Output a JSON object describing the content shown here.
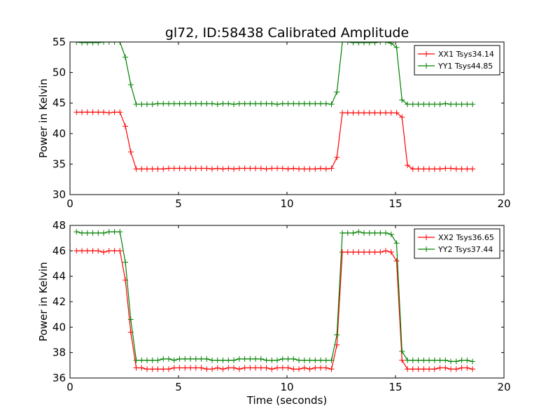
{
  "page": {
    "title": "gl72, ID:58438 Calibrated Amplitude"
  },
  "colors": {
    "xx": "#ff0000",
    "yy": "#008000",
    "axis": "#000000",
    "background": "#ffffff"
  },
  "chart_data": [
    {
      "type": "line",
      "title": "gl72, ID:58438 Calibrated Amplitude",
      "xlabel": "",
      "ylabel": "Power in Kelvin",
      "xlim": [
        0,
        20
      ],
      "ylim": [
        30,
        55
      ],
      "xticks": [
        0,
        5,
        10,
        15,
        20
      ],
      "yticks": [
        30,
        35,
        40,
        45,
        50,
        55
      ],
      "grid": false,
      "legend_position": "top-right",
      "marker": "plus",
      "x": [
        0.3,
        0.55,
        0.8,
        1.05,
        1.3,
        1.55,
        1.8,
        2.05,
        2.3,
        2.55,
        2.8,
        3.05,
        3.3,
        3.55,
        3.8,
        4.05,
        4.3,
        4.55,
        4.8,
        5.05,
        5.3,
        5.55,
        5.8,
        6.05,
        6.3,
        6.55,
        6.8,
        7.05,
        7.3,
        7.55,
        7.8,
        8.05,
        8.3,
        8.55,
        8.8,
        9.05,
        9.3,
        9.55,
        9.8,
        10.05,
        10.3,
        10.55,
        10.8,
        11.05,
        11.3,
        11.55,
        11.8,
        12.05,
        12.3,
        12.55,
        12.8,
        13.05,
        13.3,
        13.55,
        13.8,
        14.05,
        14.3,
        14.55,
        14.8,
        15.05,
        15.3,
        15.55,
        15.8,
        16.05,
        16.3,
        16.55,
        16.8,
        17.05,
        17.3,
        17.55,
        17.8,
        18.05,
        18.3,
        18.55
      ],
      "series": [
        {
          "name": "XX1 Tsys34.14",
          "color": "#ff0000",
          "values": [
            43.5,
            43.5,
            43.5,
            43.5,
            43.5,
            43.5,
            43.4,
            43.5,
            43.5,
            41.2,
            37.0,
            34.2,
            34.2,
            34.2,
            34.2,
            34.2,
            34.2,
            34.3,
            34.3,
            34.3,
            34.3,
            34.3,
            34.3,
            34.3,
            34.3,
            34.2,
            34.3,
            34.2,
            34.3,
            34.2,
            34.3,
            34.3,
            34.3,
            34.3,
            34.3,
            34.2,
            34.3,
            34.3,
            34.3,
            34.2,
            34.3,
            34.2,
            34.2,
            34.2,
            34.2,
            34.3,
            34.2,
            34.3,
            36.1,
            43.4,
            43.4,
            43.4,
            43.4,
            43.4,
            43.4,
            43.4,
            43.4,
            43.4,
            43.4,
            43.4,
            42.7,
            34.8,
            34.2,
            34.2,
            34.2,
            34.2,
            34.2,
            34.2,
            34.3,
            34.3,
            34.2,
            34.2,
            34.2,
            34.2
          ]
        },
        {
          "name": "YY1 Tsys44.85",
          "color": "#008000",
          "values": [
            55.0,
            54.9,
            54.9,
            54.9,
            54.9,
            55.0,
            55.0,
            55.0,
            55.0,
            52.5,
            48.0,
            44.8,
            44.8,
            44.8,
            44.8,
            44.9,
            44.9,
            44.9,
            44.9,
            44.9,
            44.9,
            44.9,
            44.9,
            44.9,
            44.9,
            44.9,
            44.8,
            44.9,
            44.9,
            44.8,
            44.9,
            44.9,
            44.9,
            44.9,
            44.9,
            44.9,
            44.9,
            44.8,
            44.9,
            44.9,
            44.9,
            44.9,
            44.9,
            44.9,
            44.9,
            44.9,
            44.9,
            44.8,
            46.8,
            55.0,
            55.0,
            54.9,
            54.9,
            54.9,
            54.9,
            54.9,
            55.0,
            55.0,
            54.8,
            54.1,
            45.5,
            44.8,
            44.8,
            44.8,
            44.8,
            44.8,
            44.8,
            44.8,
            44.9,
            44.8,
            44.8,
            44.8,
            44.8,
            44.8
          ]
        }
      ]
    },
    {
      "type": "line",
      "title": "",
      "xlabel": "Time (seconds)",
      "ylabel": "Power in Kelvin",
      "xlim": [
        0,
        20
      ],
      "ylim": [
        36,
        48
      ],
      "xticks": [
        0,
        5,
        10,
        15,
        20
      ],
      "yticks": [
        36,
        38,
        40,
        42,
        44,
        46,
        48
      ],
      "grid": false,
      "legend_position": "top-right",
      "marker": "plus",
      "x": [
        0.3,
        0.55,
        0.8,
        1.05,
        1.3,
        1.55,
        1.8,
        2.05,
        2.3,
        2.55,
        2.8,
        3.05,
        3.3,
        3.55,
        3.8,
        4.05,
        4.3,
        4.55,
        4.8,
        5.05,
        5.3,
        5.55,
        5.8,
        6.05,
        6.3,
        6.55,
        6.8,
        7.05,
        7.3,
        7.55,
        7.8,
        8.05,
        8.3,
        8.55,
        8.8,
        9.05,
        9.3,
        9.55,
        9.8,
        10.05,
        10.3,
        10.55,
        10.8,
        11.05,
        11.3,
        11.55,
        11.8,
        12.05,
        12.3,
        12.55,
        12.8,
        13.05,
        13.3,
        13.55,
        13.8,
        14.05,
        14.3,
        14.55,
        14.8,
        15.05,
        15.3,
        15.55,
        15.8,
        16.05,
        16.3,
        16.55,
        16.8,
        17.05,
        17.3,
        17.55,
        17.8,
        18.05,
        18.3,
        18.55
      ],
      "series": [
        {
          "name": "XX2 Tsys36.65",
          "color": "#ff0000",
          "values": [
            46.0,
            46.0,
            46.0,
            46.0,
            46.0,
            45.9,
            46.0,
            46.0,
            46.0,
            43.7,
            39.6,
            36.8,
            36.8,
            36.7,
            36.7,
            36.7,
            36.7,
            36.7,
            36.8,
            36.8,
            36.8,
            36.8,
            36.8,
            36.8,
            36.7,
            36.7,
            36.8,
            36.7,
            36.8,
            36.8,
            36.7,
            36.8,
            36.8,
            36.8,
            36.8,
            36.8,
            36.7,
            36.8,
            36.8,
            36.8,
            36.7,
            36.7,
            36.8,
            36.7,
            36.8,
            36.8,
            36.8,
            36.7,
            38.6,
            45.9,
            45.9,
            45.9,
            45.9,
            45.9,
            45.9,
            45.9,
            45.9,
            46.0,
            45.9,
            45.2,
            37.4,
            36.7,
            36.7,
            36.7,
            36.7,
            36.7,
            36.7,
            36.8,
            36.8,
            36.7,
            36.7,
            36.8,
            36.8,
            36.7
          ]
        },
        {
          "name": "YY2 Tsys37.44",
          "color": "#008000",
          "values": [
            47.5,
            47.4,
            47.4,
            47.4,
            47.4,
            47.4,
            47.5,
            47.5,
            47.5,
            45.1,
            40.6,
            37.4,
            37.4,
            37.4,
            37.4,
            37.4,
            37.5,
            37.5,
            37.4,
            37.5,
            37.5,
            37.5,
            37.5,
            37.5,
            37.5,
            37.4,
            37.4,
            37.4,
            37.4,
            37.4,
            37.5,
            37.5,
            37.5,
            37.5,
            37.5,
            37.4,
            37.4,
            37.4,
            37.5,
            37.5,
            37.5,
            37.4,
            37.4,
            37.4,
            37.4,
            37.4,
            37.4,
            37.4,
            39.4,
            47.4,
            47.4,
            47.4,
            47.5,
            47.4,
            47.4,
            47.4,
            47.4,
            47.4,
            47.3,
            46.6,
            38.1,
            37.4,
            37.4,
            37.4,
            37.4,
            37.4,
            37.4,
            37.4,
            37.4,
            37.3,
            37.3,
            37.4,
            37.4,
            37.3
          ]
        }
      ]
    }
  ]
}
